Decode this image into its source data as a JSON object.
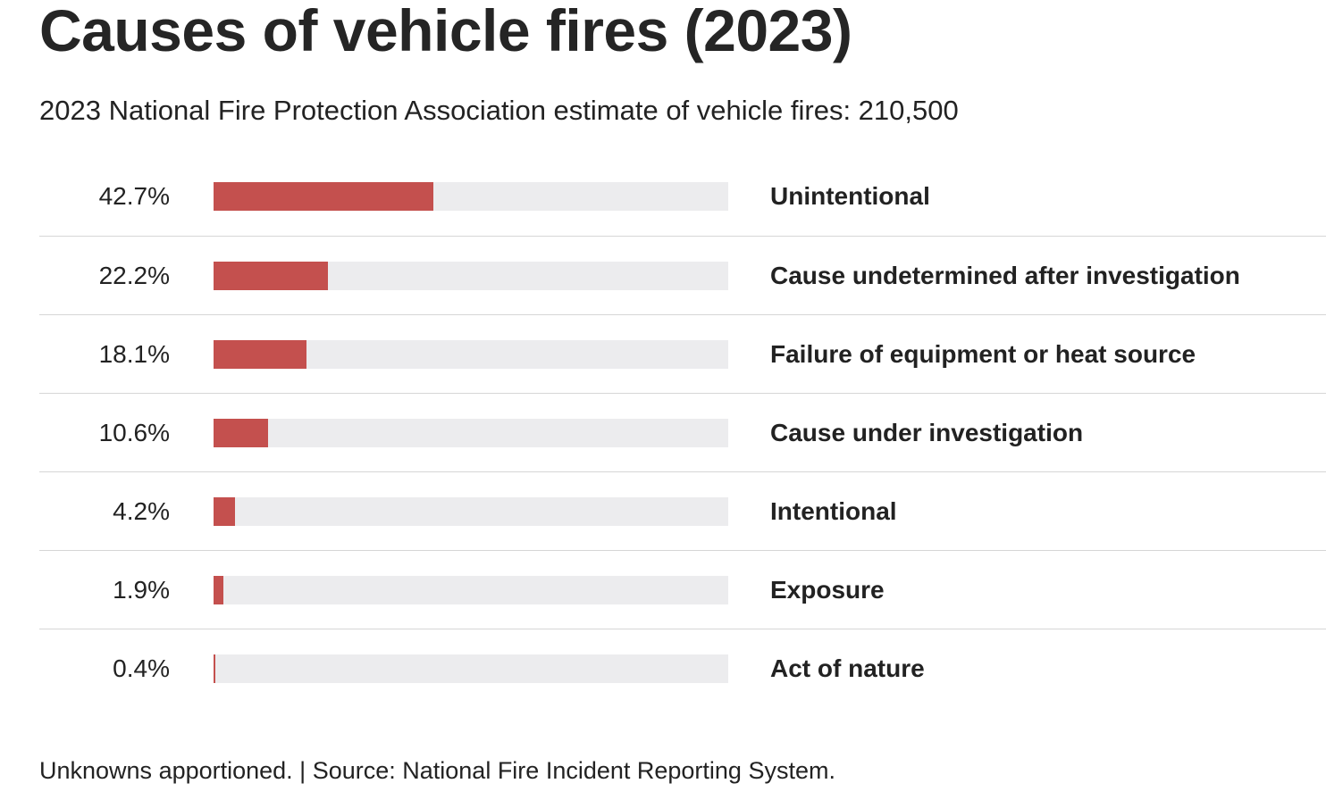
{
  "chart_data": {
    "type": "bar",
    "orientation": "horizontal",
    "title": "Causes of vehicle fires (2023)",
    "subtitle": "2023 National Fire Protection Association estimate of vehicle fires: 210,500",
    "categories": [
      "Unintentional",
      "Cause undetermined after investigation",
      "Failure of equipment or heat source",
      "Cause under investigation",
      "Intentional",
      "Exposure",
      "Act of nature"
    ],
    "values": [
      42.7,
      22.2,
      18.1,
      10.6,
      4.2,
      1.9,
      0.4
    ],
    "value_labels": [
      "42.7%",
      "22.2%",
      "18.1%",
      "10.6%",
      "4.2%",
      "1.9%",
      "0.4%"
    ],
    "unit": "%",
    "xlim": [
      0,
      100
    ],
    "bar_color": "#c4504e",
    "track_color": "#ececee",
    "footnote": "Unknowns apportioned. | Source: National Fire Incident Reporting System."
  }
}
